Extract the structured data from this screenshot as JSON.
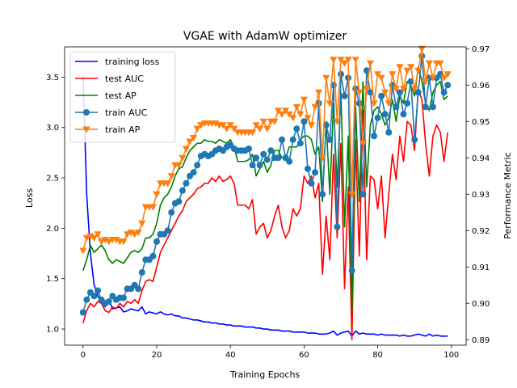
{
  "chart_data": {
    "type": "line",
    "title": "VGAE with AdamW optimizer",
    "xlabel": "Training Epochs",
    "ylabel_left": "Loss",
    "ylabel_right": "Performance Metric",
    "xlim": [
      -5,
      104
    ],
    "ylim_left": [
      0.84,
      3.8
    ],
    "ylim_right": [
      0.8885,
      0.9705
    ],
    "x_ticks": [
      0,
      20,
      40,
      60,
      80,
      100
    ],
    "y_left_ticks": [
      1.0,
      1.5,
      2.0,
      2.5,
      3.0,
      3.5
    ],
    "y_right_ticks": [
      0.89,
      0.9,
      0.91,
      0.92,
      0.93,
      0.94,
      0.95,
      0.96,
      0.97
    ],
    "legend_position": "upper left",
    "grid": false,
    "series": [
      {
        "name": "training loss",
        "axis": "left",
        "color": "#0000ff",
        "marker": "none",
        "values": [
          3.52,
          2.33,
          1.75,
          1.44,
          1.33,
          1.26,
          1.22,
          1.29,
          1.2,
          1.21,
          1.22,
          1.17,
          1.18,
          1.2,
          1.19,
          1.18,
          1.22,
          1.15,
          1.17,
          1.16,
          1.15,
          1.17,
          1.15,
          1.14,
          1.15,
          1.13,
          1.13,
          1.11,
          1.11,
          1.1,
          1.09,
          1.09,
          1.08,
          1.07,
          1.07,
          1.06,
          1.06,
          1.05,
          1.05,
          1.04,
          1.04,
          1.03,
          1.03,
          1.03,
          1.02,
          1.02,
          1.02,
          1.01,
          1.01,
          1.0,
          1.0,
          0.99,
          0.99,
          0.99,
          0.98,
          0.98,
          0.98,
          0.97,
          0.97,
          0.97,
          0.97,
          0.96,
          0.96,
          0.96,
          0.95,
          0.95,
          0.95,
          0.96,
          0.98,
          0.94,
          0.96,
          0.97,
          0.98,
          0.93,
          0.98,
          0.95,
          0.96,
          0.95,
          0.95,
          0.95,
          0.94,
          0.95,
          0.94,
          0.94,
          0.94,
          0.94,
          0.93,
          0.94,
          0.93,
          0.93,
          0.94,
          0.95,
          0.94,
          0.93,
          0.95,
          0.93,
          0.94,
          0.93,
          0.93,
          0.93
        ]
      },
      {
        "name": "test AUC",
        "axis": "right",
        "color": "#ff0000",
        "marker": "none",
        "values": [
          0.8945,
          0.898,
          0.9,
          0.899,
          0.9005,
          0.9,
          0.898,
          0.8975,
          0.899,
          0.8985,
          0.9,
          0.899,
          0.9005,
          0.9,
          0.901,
          0.9,
          0.9035,
          0.906,
          0.9065,
          0.906,
          0.91,
          0.914,
          0.916,
          0.918,
          0.92,
          0.922,
          0.924,
          0.9255,
          0.928,
          0.929,
          0.93,
          0.9315,
          0.932,
          0.933,
          0.933,
          0.9345,
          0.9335,
          0.935,
          0.9335,
          0.934,
          0.935,
          0.933,
          0.927,
          0.927,
          0.927,
          0.926,
          0.9285,
          0.919,
          0.921,
          0.922,
          0.918,
          0.92,
          0.924,
          0.927,
          0.921,
          0.918,
          0.92,
          0.926,
          0.924,
          0.926,
          0.935,
          0.933,
          0.935,
          0.929,
          0.933,
          0.908,
          0.924,
          0.912,
          0.941,
          0.918,
          0.944,
          0.904,
          0.932,
          0.89,
          0.945,
          0.913,
          0.953,
          0.912,
          0.935,
          0.934,
          0.926,
          0.935,
          0.918,
          0.93,
          0.941,
          0.934,
          0.946,
          0.939,
          0.95,
          0.949,
          0.942,
          0.959,
          0.956,
          0.944,
          0.935,
          0.946,
          0.949,
          0.947,
          0.939,
          0.947
        ]
      },
      {
        "name": "test AP",
        "axis": "right",
        "color": "#008000",
        "marker": "none",
        "values": [
          0.909,
          0.912,
          0.916,
          0.914,
          0.915,
          0.916,
          0.9145,
          0.912,
          0.911,
          0.912,
          0.9115,
          0.911,
          0.9125,
          0.914,
          0.9145,
          0.914,
          0.915,
          0.918,
          0.918,
          0.919,
          0.922,
          0.927,
          0.929,
          0.93,
          0.932,
          0.935,
          0.937,
          0.9375,
          0.94,
          0.942,
          0.943,
          0.944,
          0.944,
          0.945,
          0.9445,
          0.9445,
          0.944,
          0.945,
          0.9445,
          0.944,
          0.945,
          0.943,
          0.939,
          0.939,
          0.939,
          0.9395,
          0.941,
          0.935,
          0.937,
          0.939,
          0.936,
          0.938,
          0.942,
          0.942,
          0.94,
          0.94,
          0.943,
          0.943,
          0.943,
          0.945,
          0.946,
          0.946,
          0.945,
          0.941,
          0.943,
          0.928,
          0.95,
          0.93,
          0.955,
          0.932,
          0.958,
          0.921,
          0.946,
          0.898,
          0.954,
          0.928,
          0.961,
          0.932,
          0.949,
          0.953,
          0.954,
          0.952,
          0.949,
          0.951,
          0.956,
          0.95,
          0.957,
          0.955,
          0.961,
          0.96,
          0.957,
          0.965,
          0.961,
          0.955,
          0.953,
          0.958,
          0.96,
          0.961,
          0.956,
          0.957
        ]
      },
      {
        "name": "train AUC",
        "axis": "right",
        "color": "#1f77b4",
        "marker": "circle",
        "values": [
          0.8975,
          0.901,
          0.903,
          0.902,
          0.9035,
          0.901,
          0.9,
          0.9005,
          0.902,
          0.901,
          0.9015,
          0.9015,
          0.904,
          0.904,
          0.905,
          0.904,
          0.9085,
          0.912,
          0.912,
          0.913,
          0.917,
          0.919,
          0.919,
          0.92,
          0.925,
          0.9275,
          0.928,
          0.931,
          0.933,
          0.935,
          0.936,
          0.938,
          0.9405,
          0.941,
          0.9405,
          0.941,
          0.942,
          0.9425,
          0.942,
          0.943,
          0.9435,
          0.9425,
          0.942,
          0.942,
          0.942,
          0.9425,
          0.938,
          0.94,
          0.938,
          0.941,
          0.9395,
          0.942,
          0.94,
          0.94,
          0.945,
          0.94,
          0.939,
          0.945,
          0.948,
          0.944,
          0.95,
          0.937,
          0.933,
          0.936,
          0.955,
          0.93,
          0.949,
          0.945,
          0.96,
          0.921,
          0.963,
          0.957,
          0.962,
          0.909,
          0.959,
          0.955,
          0.93,
          0.964,
          0.958,
          0.946,
          0.951,
          0.957,
          0.952,
          0.947,
          0.96,
          0.954,
          0.958,
          0.952,
          0.955,
          0.961,
          0.945,
          0.958,
          0.968,
          0.954,
          0.962,
          0.954,
          0.962,
          0.963,
          0.958,
          0.96
        ]
      },
      {
        "name": "train AP",
        "axis": "right",
        "color": "#ff7f0e",
        "marker": "triangle-down",
        "values": [
          0.9145,
          0.918,
          0.9185,
          0.918,
          0.919,
          0.917,
          0.9175,
          0.917,
          0.9175,
          0.9175,
          0.917,
          0.917,
          0.919,
          0.9195,
          0.919,
          0.9195,
          0.922,
          0.9265,
          0.9265,
          0.9265,
          0.93,
          0.933,
          0.933,
          0.933,
          0.935,
          0.938,
          0.938,
          0.94,
          0.9425,
          0.9445,
          0.9455,
          0.948,
          0.949,
          0.9495,
          0.9495,
          0.9495,
          0.9495,
          0.949,
          0.949,
          0.948,
          0.949,
          0.948,
          0.947,
          0.947,
          0.947,
          0.947,
          0.947,
          0.949,
          0.948,
          0.95,
          0.948,
          0.95,
          0.95,
          0.953,
          0.952,
          0.953,
          0.952,
          0.951,
          0.954,
          0.952,
          0.956,
          0.951,
          0.949,
          0.954,
          0.958,
          0.94,
          0.962,
          0.955,
          0.967,
          0.95,
          0.967,
          0.966,
          0.967,
          0.93,
          0.967,
          0.958,
          0.944,
          0.959,
          0.966,
          0.955,
          0.963,
          0.962,
          0.958,
          0.955,
          0.963,
          0.959,
          0.965,
          0.959,
          0.964,
          0.965,
          0.959,
          0.964,
          0.97,
          0.961,
          0.966,
          0.962,
          0.966,
          0.966,
          0.962,
          0.963
        ]
      }
    ]
  }
}
